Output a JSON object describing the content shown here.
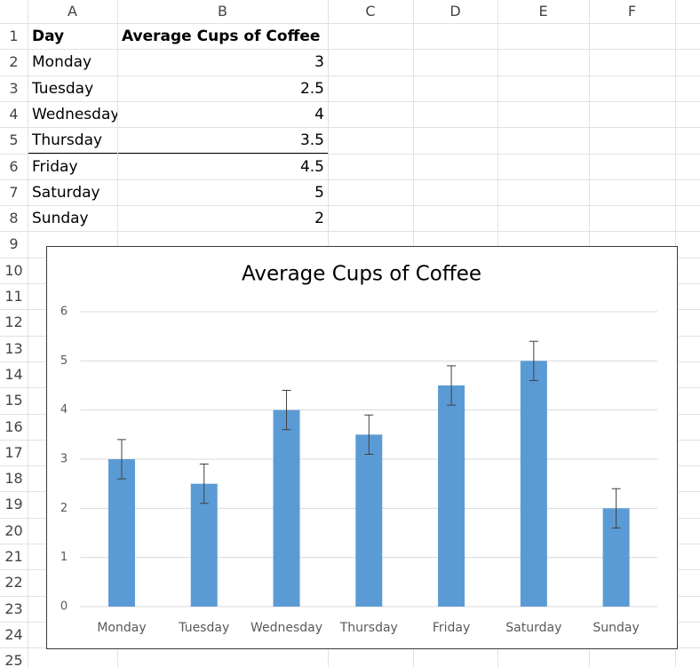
{
  "sheet": {
    "column_headers": [
      "A",
      "B",
      "C",
      "D",
      "E",
      "F"
    ],
    "row_headers": [
      1,
      2,
      3,
      4,
      5,
      6,
      7,
      8,
      9,
      10,
      11,
      12,
      13,
      14,
      15,
      16,
      17,
      18,
      19,
      20,
      21,
      22,
      23,
      24,
      25
    ],
    "table": {
      "header": [
        "Day",
        "Average Cups of Coffee"
      ],
      "rows": [
        [
          "Monday",
          "3"
        ],
        [
          "Tuesday",
          "2.5"
        ],
        [
          "Wednesday",
          "4"
        ],
        [
          "Thursday",
          "3.5"
        ],
        [
          "Friday",
          "4.5"
        ],
        [
          "Saturday",
          "5"
        ],
        [
          "Sunday",
          "2"
        ]
      ]
    }
  },
  "chart_data": {
    "type": "bar",
    "title": "Average Cups of Coffee",
    "categories": [
      "Monday",
      "Tuesday",
      "Wednesday",
      "Thursday",
      "Friday",
      "Saturday",
      "Sunday"
    ],
    "values": [
      3,
      2.5,
      4,
      3.5,
      4.5,
      5,
      2
    ],
    "errors": [
      0.4,
      0.4,
      0.4,
      0.4,
      0.4,
      0.4,
      0.4
    ],
    "color": "#5b9bd5",
    "ylim": [
      0,
      6
    ],
    "yticks": [
      0,
      1,
      2,
      3,
      4,
      5,
      6
    ],
    "grid": true
  }
}
